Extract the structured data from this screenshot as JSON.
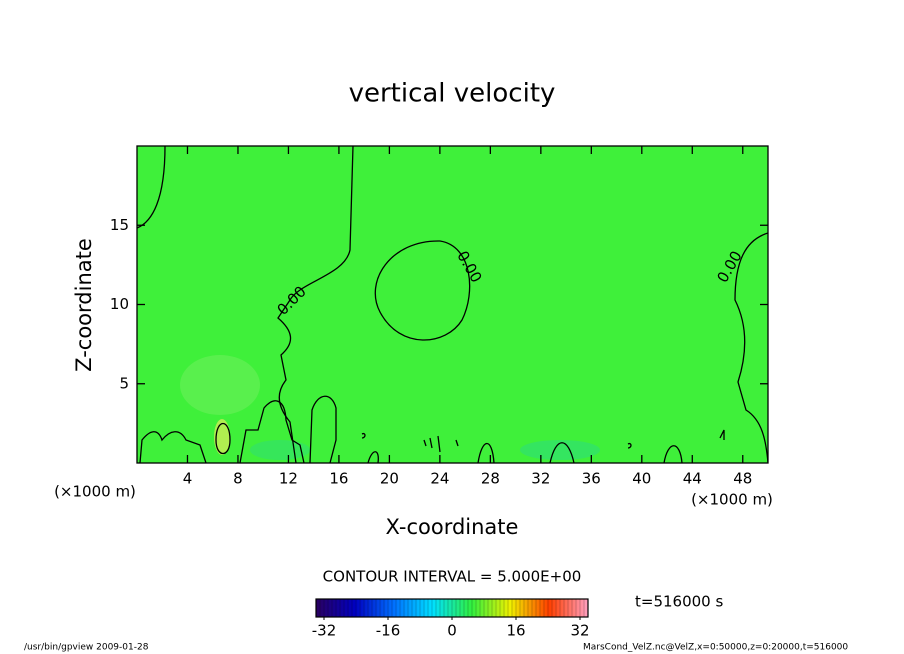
{
  "chart_data": {
    "type": "contour",
    "title": "vertical velocity",
    "x_label": "X-coordinate",
    "y_label": "Z-coordinate",
    "x_unit": "(×1000 m)",
    "y_unit": "(×1000 m)",
    "xlim": [
      0,
      50
    ],
    "ylim": [
      0,
      20
    ],
    "xticks": [
      4,
      8,
      12,
      16,
      20,
      24,
      28,
      32,
      36,
      40,
      44,
      48
    ],
    "yticks": [
      5,
      10,
      15
    ],
    "field_color": "#3ff03a",
    "levels": [
      0
    ],
    "level_labels": [
      "0.00"
    ],
    "contour_interval": "CONTOUR INTERVAL = 5.000E+00",
    "time_label": "t=516000 s",
    "colorbar": {
      "lim": [
        -34,
        34
      ],
      "ticks": [
        -32,
        -16,
        0,
        16,
        32
      ],
      "colors": [
        "#2a0060",
        "#0000c0",
        "#0070ff",
        "#00e0ff",
        "#30f040",
        "#f0f000",
        "#ff4000",
        "#ffa0c0"
      ]
    },
    "footer_left": "/usr/bin/gpview  2009-01-28",
    "footer_right": "MarsCond_VelZ.nc@VelZ,x=0:50000,z=0:20000,t=516000"
  }
}
